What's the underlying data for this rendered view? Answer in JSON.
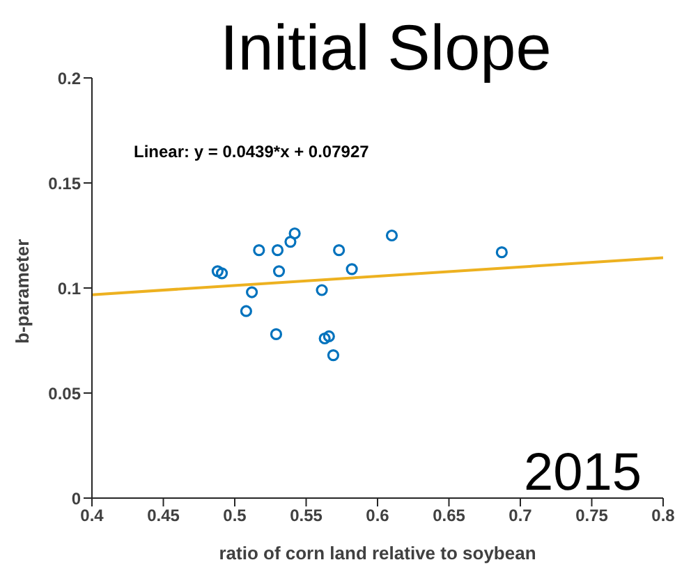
{
  "chart_data": {
    "type": "scatter",
    "title": "Initial Slope",
    "xlabel": "ratio of corn land relative to soybean",
    "ylabel": "b-parameter",
    "annotations": [
      "Linear:  y = 0.0439*x + 0.07927",
      "2015"
    ],
    "xlim": [
      0.4,
      0.8
    ],
    "xticks": [
      0.4,
      0.45,
      0.5,
      0.55,
      0.6,
      0.65,
      0.7,
      0.75,
      0.8
    ],
    "ylim": [
      0,
      0.2
    ],
    "yticks": [
      0,
      0.05,
      0.1,
      0.15,
      0.2
    ],
    "grid": false,
    "marker": "circle",
    "series": [
      {
        "color": "#0072bd",
        "x": [
          0.488,
          0.491,
          0.517,
          0.53,
          0.531,
          0.512,
          0.508,
          0.529,
          0.539,
          0.542,
          0.561,
          0.563,
          0.566,
          0.569,
          0.573,
          0.582,
          0.61,
          0.687
        ],
        "values": [
          0.108,
          0.107,
          0.118,
          0.118,
          0.108,
          0.098,
          0.089,
          0.078,
          0.122,
          0.126,
          0.099,
          0.076,
          0.077,
          0.068,
          0.118,
          0.109,
          0.125,
          0.117
        ]
      },
      {
        "type": "line",
        "color": "#edb120",
        "x": [
          0.4,
          0.8
        ],
        "values": [
          0.0968,
          0.1144
        ],
        "marker": "none",
        "line_style": "solid"
      }
    ]
  }
}
